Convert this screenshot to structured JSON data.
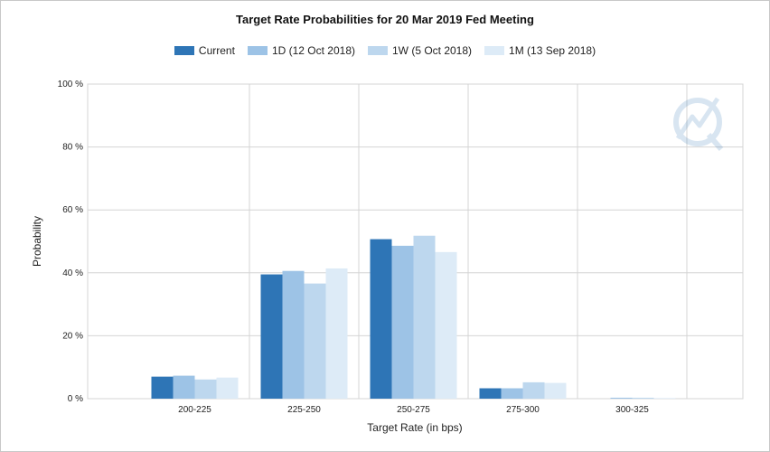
{
  "chart_data": {
    "type": "bar",
    "title": "Target Rate Probabilities for 20 Mar 2019 Fed Meeting",
    "xlabel": "Target Rate (in bps)",
    "ylabel": "Probability",
    "categories": [
      "200-225",
      "225-250",
      "250-275",
      "275-300",
      "300-325"
    ],
    "ylim": [
      0,
      100
    ],
    "yticks": [
      "0 %",
      "20 %",
      "40 %",
      "60 %",
      "80 %",
      "100 %"
    ],
    "grid": true,
    "legend_position": "top",
    "series": [
      {
        "name": "Current",
        "color": "#2e75b6",
        "values": [
          7.0,
          39.5,
          50.7,
          3.3,
          0.0
        ]
      },
      {
        "name": "1D (12 Oct 2018)",
        "color": "#9dc3e6",
        "values": [
          7.3,
          40.6,
          48.6,
          3.3,
          0.3
        ]
      },
      {
        "name": "1W (5 Oct 2018)",
        "color": "#bdd7ee",
        "values": [
          6.1,
          36.6,
          51.8,
          5.2,
          0.3
        ]
      },
      {
        "name": "1M (13 Sep 2018)",
        "color": "#ddebf7",
        "values": [
          6.7,
          41.4,
          46.6,
          5.0,
          0.2
        ]
      }
    ]
  }
}
